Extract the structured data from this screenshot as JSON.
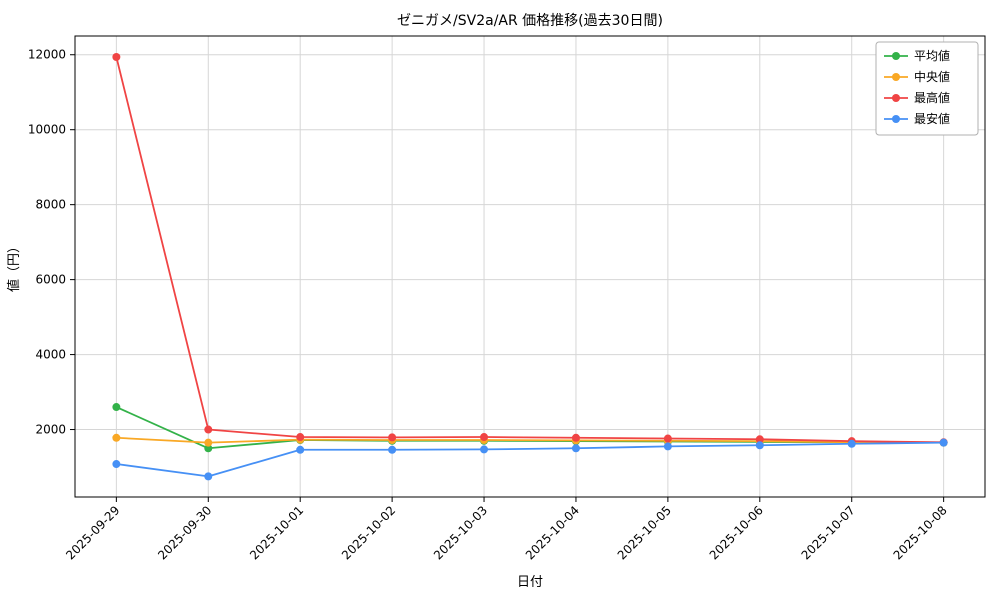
{
  "chart_data": {
    "type": "line",
    "title": "ゼニガメ/SV2a/AR 価格推移(過去30日間)",
    "xlabel": "日付",
    "ylabel": "値（円）",
    "categories": [
      "2025-09-29",
      "2025-09-30",
      "2025-10-01",
      "2025-10-02",
      "2025-10-03",
      "2025-10-04",
      "2025-10-05",
      "2025-10-06",
      "2025-10-07",
      "2025-10-08"
    ],
    "series": [
      {
        "name": "平均値",
        "color": "#33b249",
        "values": [
          2600,
          1500,
          1720,
          1700,
          1700,
          1690,
          1680,
          1670,
          1660,
          1650
        ]
      },
      {
        "name": "中央値",
        "color": "#f9a825",
        "values": [
          1780,
          1650,
          1730,
          1720,
          1720,
          1710,
          1700,
          1690,
          1660,
          1650
        ]
      },
      {
        "name": "最高値",
        "color": "#f04444",
        "values": [
          11940,
          2000,
          1800,
          1790,
          1800,
          1780,
          1760,
          1740,
          1690,
          1660
        ]
      },
      {
        "name": "最安値",
        "color": "#4690f5",
        "values": [
          1080,
          750,
          1460,
          1460,
          1470,
          1500,
          1550,
          1580,
          1620,
          1650
        ]
      }
    ],
    "ylim": [
      200,
      12500
    ],
    "yticks": [
      2000,
      4000,
      6000,
      8000,
      10000,
      12000
    ],
    "grid": true,
    "legend_position": "top-right"
  }
}
